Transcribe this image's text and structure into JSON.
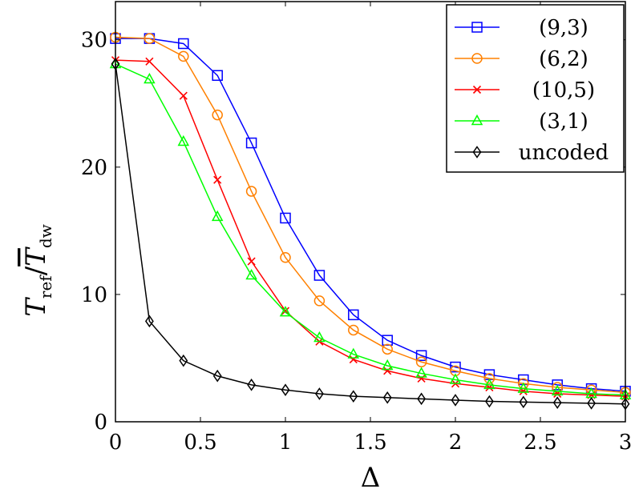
{
  "chart_data": {
    "type": "line",
    "xlabel": "Δ",
    "ylabel_main": "T",
    "ylabel_sub": "ref",
    "ylabel_slash": "/",
    "ylabel_main2": "T",
    "ylabel_sub2": "dw",
    "xlim": [
      0,
      3
    ],
    "ylim": [
      0,
      33
    ],
    "x": [
      0,
      0.2,
      0.4,
      0.6,
      0.8,
      1.0,
      1.2,
      1.4,
      1.6,
      1.8,
      2.0,
      2.2,
      2.4,
      2.6,
      2.8,
      3.0
    ],
    "x_ticks": [
      0,
      0.5,
      1,
      1.5,
      2,
      2.5,
      3
    ],
    "x_tick_labels": [
      "0",
      "0.5",
      "1",
      "1.5",
      "2",
      "2.5",
      "3"
    ],
    "y_ticks": [
      0,
      10,
      20,
      30
    ],
    "y_tick_labels": [
      "0",
      "10",
      "20",
      "30"
    ],
    "grid": false,
    "legend_position": "top-right",
    "series": [
      {
        "name": "(9,3)",
        "color": "#0000ff",
        "marker": "square",
        "values": [
          30.1,
          30.1,
          29.7,
          27.2,
          21.9,
          16.0,
          11.5,
          8.4,
          6.4,
          5.2,
          4.3,
          3.7,
          3.3,
          2.9,
          2.6,
          2.4
        ]
      },
      {
        "name": "(6,2)",
        "color": "#ff8000",
        "marker": "circle",
        "values": [
          30.2,
          30.1,
          28.7,
          24.1,
          18.1,
          12.9,
          9.5,
          7.2,
          5.7,
          4.7,
          4.0,
          3.4,
          3.0,
          2.7,
          2.5,
          2.3
        ]
      },
      {
        "name": "(10,5)",
        "color": "#ff0000",
        "marker": "cross",
        "values": [
          28.4,
          28.3,
          25.6,
          19.0,
          12.6,
          8.7,
          6.3,
          4.9,
          4.0,
          3.4,
          3.0,
          2.7,
          2.4,
          2.2,
          2.1,
          2.0
        ]
      },
      {
        "name": "(3,1)",
        "color": "#00ff00",
        "marker": "triangle",
        "values": [
          28.1,
          26.9,
          22.0,
          16.1,
          11.5,
          8.6,
          6.6,
          5.3,
          4.4,
          3.8,
          3.3,
          2.9,
          2.6,
          2.4,
          2.2,
          2.1
        ]
      },
      {
        "name": "uncoded",
        "color": "#000000",
        "marker": "diamond",
        "values": [
          28.1,
          7.9,
          4.8,
          3.6,
          2.9,
          2.5,
          2.2,
          2.0,
          1.9,
          1.8,
          1.7,
          1.6,
          1.55,
          1.5,
          1.45,
          1.4
        ]
      }
    ]
  }
}
